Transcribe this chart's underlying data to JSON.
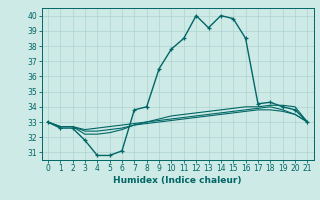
{
  "title": "",
  "xlabel": "Humidex (Indice chaleur)",
  "bg_color": "#ceeae6",
  "grid_color": "#aed4d0",
  "line_color": "#006666",
  "xlim": [
    -0.5,
    21.5
  ],
  "ylim": [
    30.5,
    40.5
  ],
  "xticks": [
    0,
    1,
    2,
    3,
    4,
    5,
    6,
    7,
    8,
    9,
    10,
    11,
    12,
    13,
    14,
    15,
    16,
    17,
    18,
    19,
    20,
    21
  ],
  "yticks": [
    31,
    32,
    33,
    34,
    35,
    36,
    37,
    38,
    39,
    40
  ],
  "series": {
    "line1_x": [
      0,
      1,
      2,
      3,
      4,
      5,
      6,
      7,
      8,
      9,
      10,
      11,
      12,
      13,
      14,
      15,
      16,
      17,
      18,
      19,
      20,
      21
    ],
    "line1_y": [
      33.0,
      32.6,
      32.6,
      31.8,
      30.8,
      30.8,
      31.1,
      33.8,
      34.0,
      36.5,
      37.8,
      38.5,
      40.0,
      39.2,
      40.0,
      39.8,
      38.5,
      34.2,
      34.3,
      34.0,
      33.8,
      33.0
    ],
    "line2_x": [
      0,
      1,
      2,
      3,
      4,
      5,
      6,
      7,
      8,
      9,
      10,
      11,
      12,
      13,
      14,
      15,
      16,
      17,
      18,
      19,
      20,
      21
    ],
    "line2_y": [
      33.0,
      32.7,
      32.7,
      32.2,
      32.2,
      32.3,
      32.5,
      32.8,
      33.0,
      33.2,
      33.4,
      33.5,
      33.6,
      33.7,
      33.8,
      33.9,
      34.0,
      34.0,
      34.1,
      34.1,
      34.0,
      33.0
    ],
    "line3_x": [
      0,
      1,
      2,
      3,
      4,
      5,
      6,
      7,
      8,
      9,
      10,
      11,
      12,
      13,
      14,
      15,
      16,
      17,
      18,
      19,
      20,
      21
    ],
    "line3_y": [
      33.0,
      32.7,
      32.7,
      32.5,
      32.6,
      32.7,
      32.8,
      32.9,
      33.0,
      33.1,
      33.2,
      33.3,
      33.4,
      33.5,
      33.6,
      33.7,
      33.8,
      33.9,
      34.0,
      33.8,
      33.5,
      33.0
    ],
    "line4_x": [
      0,
      1,
      2,
      3,
      4,
      5,
      6,
      7,
      8,
      9,
      10,
      11,
      12,
      13,
      14,
      15,
      16,
      17,
      18,
      19,
      20,
      21
    ],
    "line4_y": [
      33.0,
      32.7,
      32.7,
      32.4,
      32.4,
      32.5,
      32.6,
      32.8,
      32.9,
      33.0,
      33.1,
      33.2,
      33.3,
      33.4,
      33.5,
      33.6,
      33.7,
      33.8,
      33.8,
      33.7,
      33.5,
      33.0
    ]
  }
}
